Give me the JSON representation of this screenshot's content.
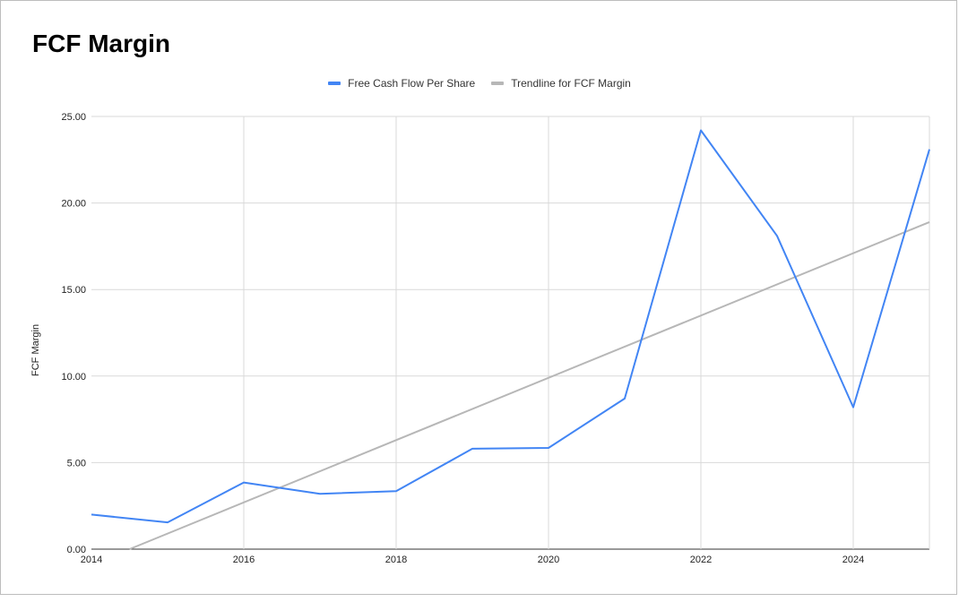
{
  "chart_data": {
    "type": "line",
    "title": "FCF Margin",
    "ylabel": "FCF Margin",
    "xlabel": "",
    "xlim": [
      2014,
      2025
    ],
    "ylim": [
      0,
      25
    ],
    "x_ticks": [
      "2014",
      "2016",
      "2018",
      "2020",
      "2022",
      "2024"
    ],
    "y_ticks": [
      "0.00",
      "5.00",
      "10.00",
      "15.00",
      "20.00",
      "25.00"
    ],
    "grid": true,
    "legend_position": "top",
    "series": [
      {
        "name": "Free Cash Flow Per Share",
        "color": "#4285f4",
        "x": [
          2014,
          2015,
          2016,
          2017,
          2018,
          2019,
          2020,
          2021,
          2022,
          2023,
          2024,
          2025
        ],
        "y": [
          2.0,
          1.55,
          3.85,
          3.2,
          3.35,
          5.8,
          5.85,
          8.7,
          24.2,
          18.1,
          8.2,
          23.1
        ]
      },
      {
        "name": "Trendline for FCF Margin",
        "color": "#b7b7b7",
        "x": [
          2014.5,
          2025
        ],
        "y": [
          0.0,
          18.9
        ]
      }
    ]
  }
}
